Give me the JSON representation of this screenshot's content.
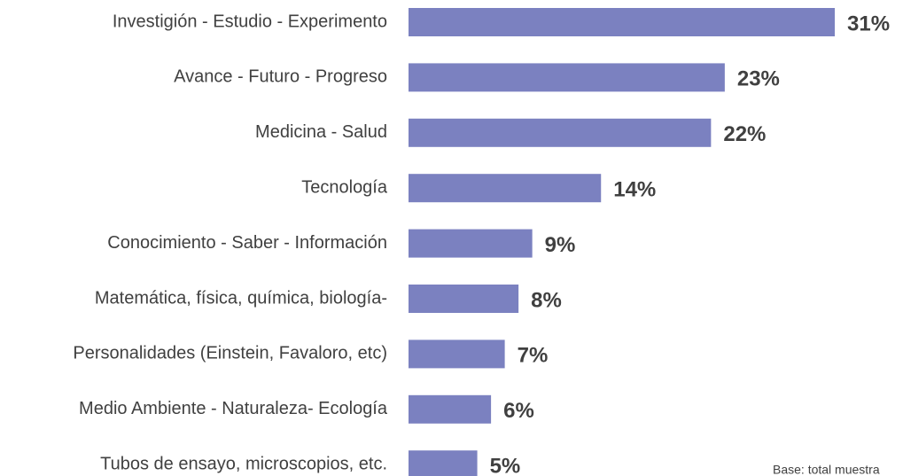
{
  "chart_data": {
    "type": "bar",
    "orientation": "horizontal",
    "categories": [
      "Investigión - Estudio - Experimento",
      "Avance - Futuro - Progreso",
      "Medicina - Salud",
      "Tecnología",
      "Conocimiento - Saber - Información",
      "Matemática, física, química, biología-",
      "Personalidades (Einstein, Favaloro, etc)",
      "Medio Ambiente - Naturaleza- Ecología",
      "Tubos de ensayo, microscopios, etc."
    ],
    "values": [
      31,
      23,
      22,
      14,
      9,
      8,
      7,
      6,
      5
    ],
    "value_labels": [
      "31%",
      "23%",
      "22%",
      "14%",
      "9%",
      "8%",
      "7%",
      "6%",
      "5%"
    ],
    "color": "#7b81c0",
    "note": "Base: total muestra"
  }
}
